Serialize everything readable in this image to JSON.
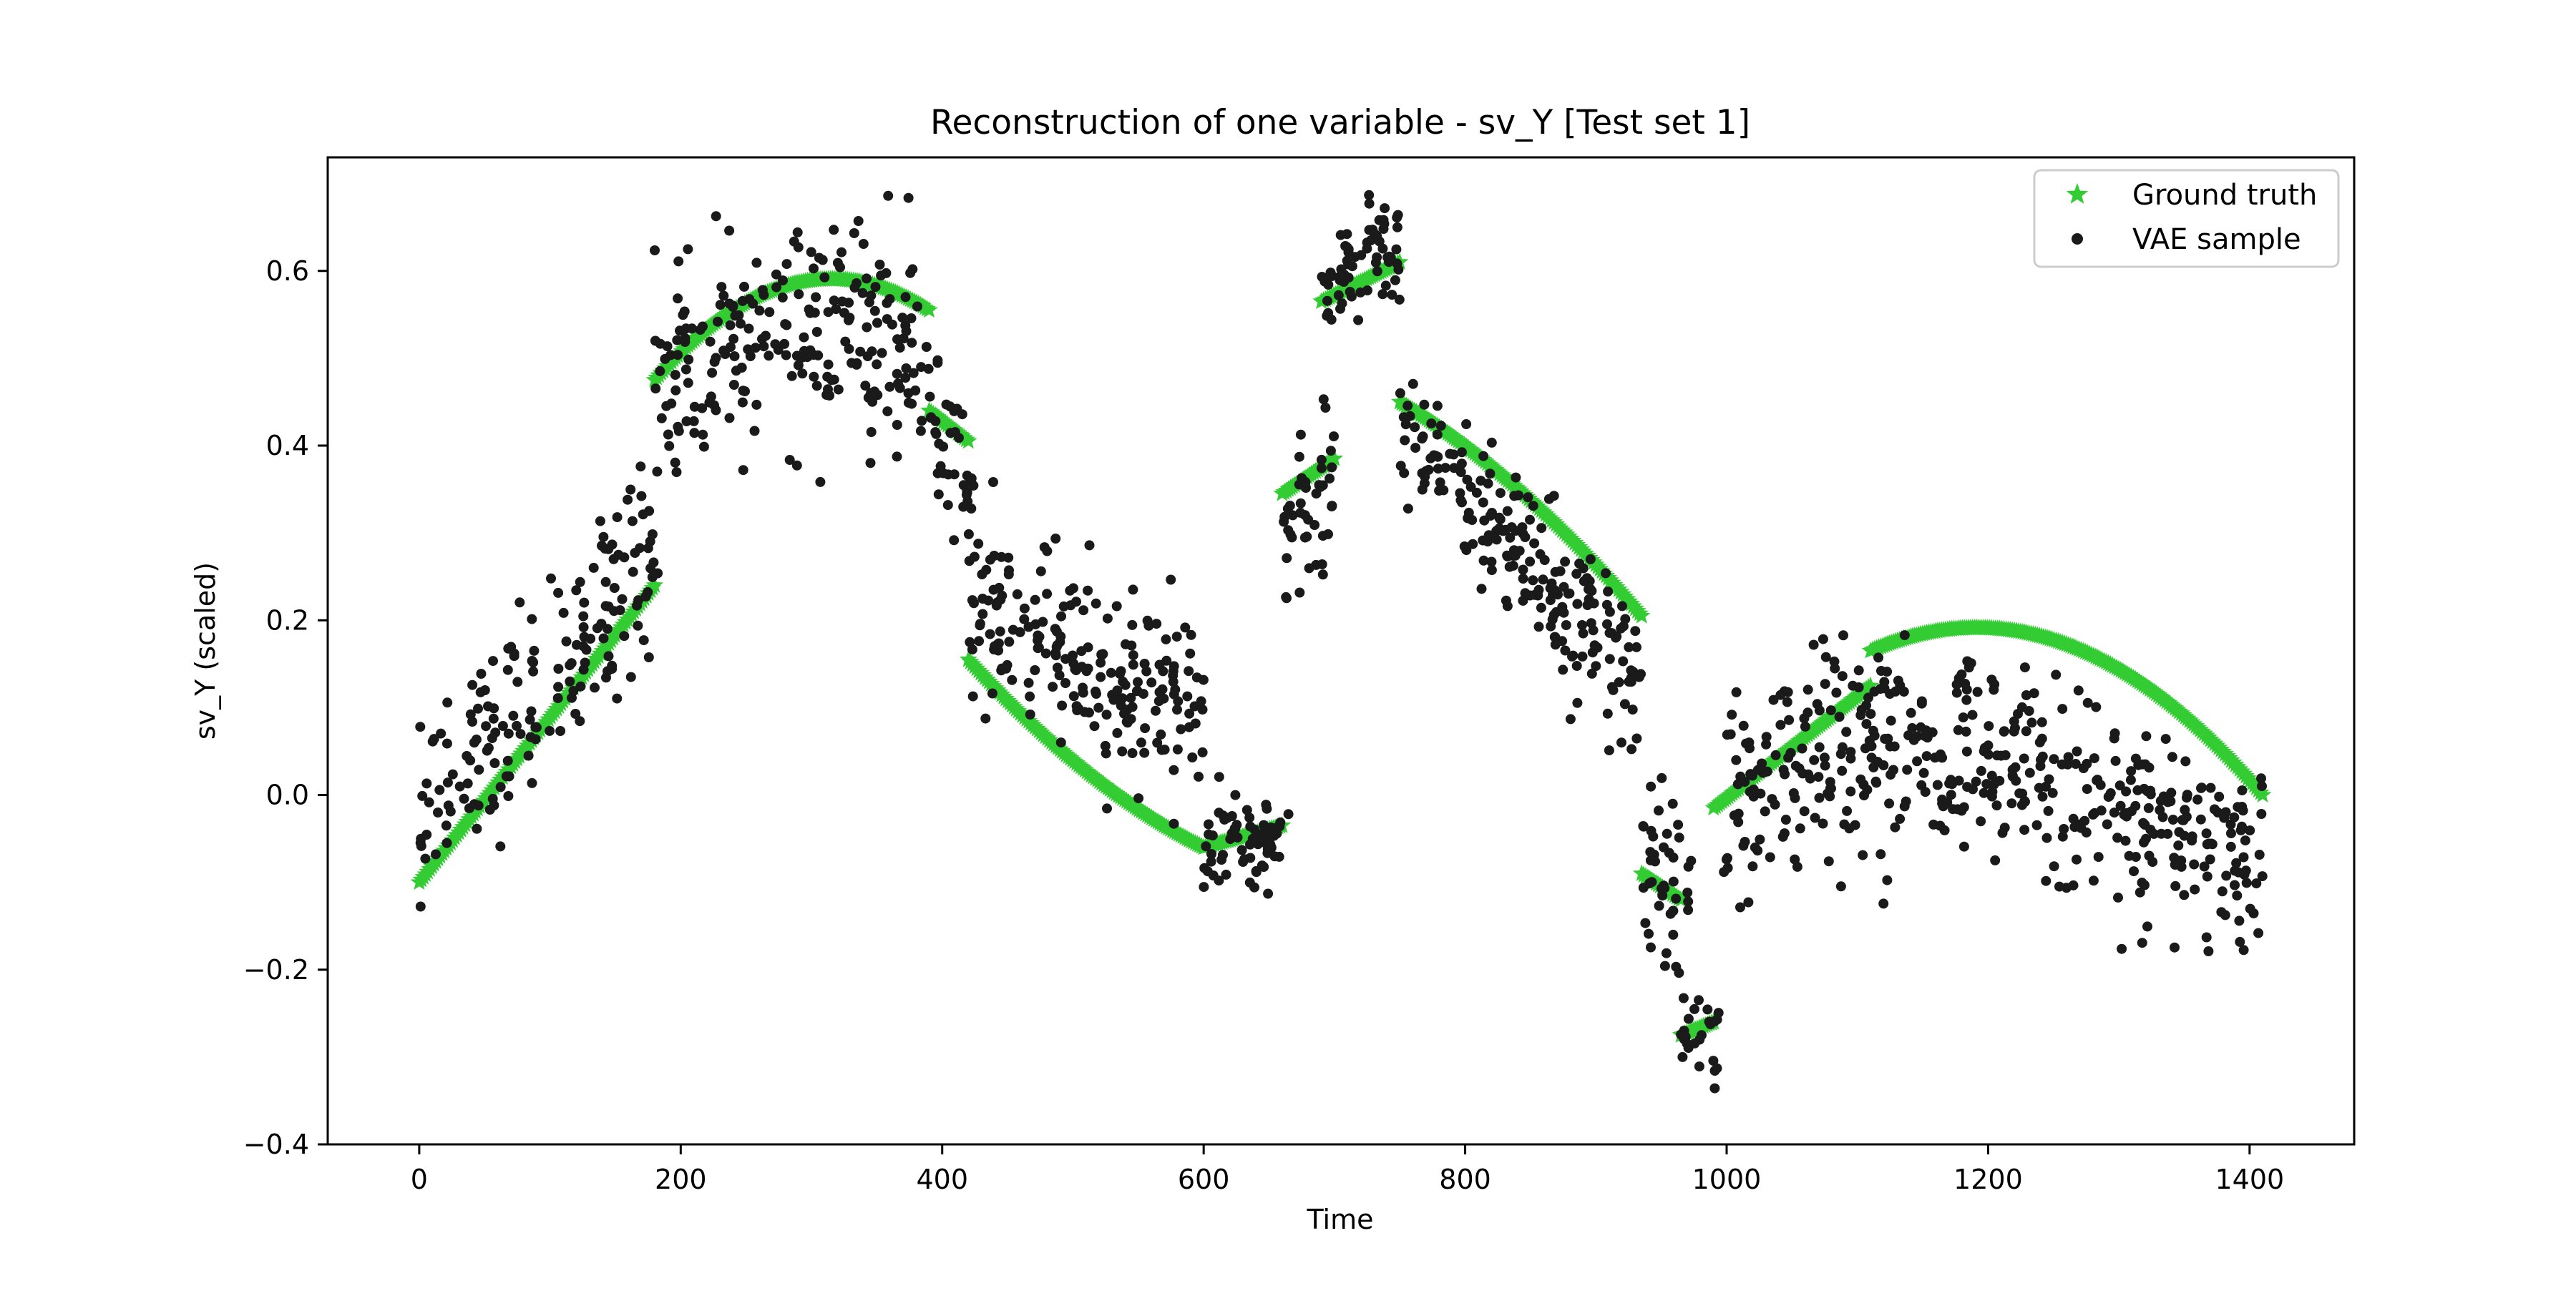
{
  "chart_data": {
    "type": "scatter",
    "title": "Reconstruction of one variable - sv_Y [Test set 1]",
    "xlabel": "Time",
    "ylabel": "sv_Y (scaled)",
    "xlim": [
      -70,
      1480
    ],
    "ylim": [
      -0.4,
      0.73
    ],
    "x_ticks": [
      0,
      200,
      400,
      600,
      800,
      1000,
      1200,
      1400
    ],
    "y_ticks": [
      -0.4,
      -0.2,
      0.0,
      0.2,
      0.4,
      0.6
    ],
    "x_tick_labels": [
      "0",
      "200",
      "400",
      "600",
      "800",
      "1000",
      "1200",
      "1400"
    ],
    "y_tick_labels": [
      "−0.4",
      "−0.2",
      "0.0",
      "0.2",
      "0.4",
      "0.6"
    ],
    "grid": false,
    "legend_position": "top-right",
    "series": [
      {
        "name": "Ground truth",
        "marker": "star",
        "color": "#33cc33",
        "segments": [
          {
            "x": [
              0,
              180
            ],
            "y": [
              -0.1,
              0.24
            ],
            "curve": 0
          },
          {
            "x": [
              180,
              390
            ],
            "y": [
              0.475,
              0.555
            ],
            "curve": 0.07
          },
          {
            "x": [
              390,
              420
            ],
            "y": [
              0.44,
              0.405
            ],
            "curve": 0
          },
          {
            "x": [
              420,
              600
            ],
            "y": [
              0.155,
              -0.06
            ],
            "curve": -0.02
          },
          {
            "x": [
              600,
              660
            ],
            "y": [
              -0.06,
              -0.035
            ],
            "curve": 0
          },
          {
            "x": [
              660,
              700
            ],
            "y": [
              0.345,
              0.385
            ],
            "curve": 0
          },
          {
            "x": [
              690,
              750
            ],
            "y": [
              0.565,
              0.61
            ],
            "curve": 0
          },
          {
            "x": [
              750,
              935
            ],
            "y": [
              0.45,
              0.205
            ],
            "curve": 0.02
          },
          {
            "x": [
              935,
              965
            ],
            "y": [
              -0.09,
              -0.12
            ],
            "curve": 0
          },
          {
            "x": [
              965,
              990
            ],
            "y": [
              -0.275,
              -0.26
            ],
            "curve": 0
          },
          {
            "x": [
              990,
              1110
            ],
            "y": [
              -0.015,
              0.125
            ],
            "curve": 0
          },
          {
            "x": [
              1110,
              1410
            ],
            "y": [
              0.165,
              0.0
            ],
            "curve": 0.09
          }
        ]
      },
      {
        "name": "VAE sample",
        "marker": "dot",
        "color": "#1a1a1a",
        "segments": [
          {
            "x": [
              0,
              180
            ],
            "y": [
              -0.04,
              0.29
            ],
            "noise": 0.055,
            "n": 170
          },
          {
            "x": [
              180,
              390
            ],
            "y": [
              0.46,
              0.5
            ],
            "noise": 0.06,
            "curve": 0.05,
            "n": 230
          },
          {
            "x": [
              390,
              425
            ],
            "y": [
              0.42,
              0.32
            ],
            "noise": 0.04,
            "n": 40
          },
          {
            "x": [
              420,
              600
            ],
            "y": [
              0.2,
              0.1
            ],
            "noise": 0.055,
            "n": 210
          },
          {
            "x": [
              600,
              665
            ],
            "y": [
              -0.06,
              -0.05
            ],
            "noise": 0.025,
            "n": 70
          },
          {
            "x": [
              660,
              700
            ],
            "y": [
              0.3,
              0.36
            ],
            "noise": 0.045,
            "n": 45
          },
          {
            "x": [
              690,
              750
            ],
            "y": [
              0.58,
              0.63
            ],
            "noise": 0.03,
            "n": 70
          },
          {
            "x": [
              750,
              935
            ],
            "y": [
              0.42,
              0.13
            ],
            "noise": 0.045,
            "n": 210
          },
          {
            "x": [
              935,
              975
            ],
            "y": [
              -0.08,
              -0.14
            ],
            "noise": 0.055,
            "n": 45
          },
          {
            "x": [
              965,
              995
            ],
            "y": [
              -0.26,
              -0.3
            ],
            "noise": 0.035,
            "n": 25
          },
          {
            "x": [
              995,
              1110
            ],
            "y": [
              -0.02,
              0.07
            ],
            "noise": 0.06,
            "n": 130
          },
          {
            "x": [
              1110,
              1410
            ],
            "y": [
              0.06,
              -0.1
            ],
            "noise": 0.055,
            "curve": 0.03,
            "n": 340
          }
        ]
      }
    ]
  }
}
